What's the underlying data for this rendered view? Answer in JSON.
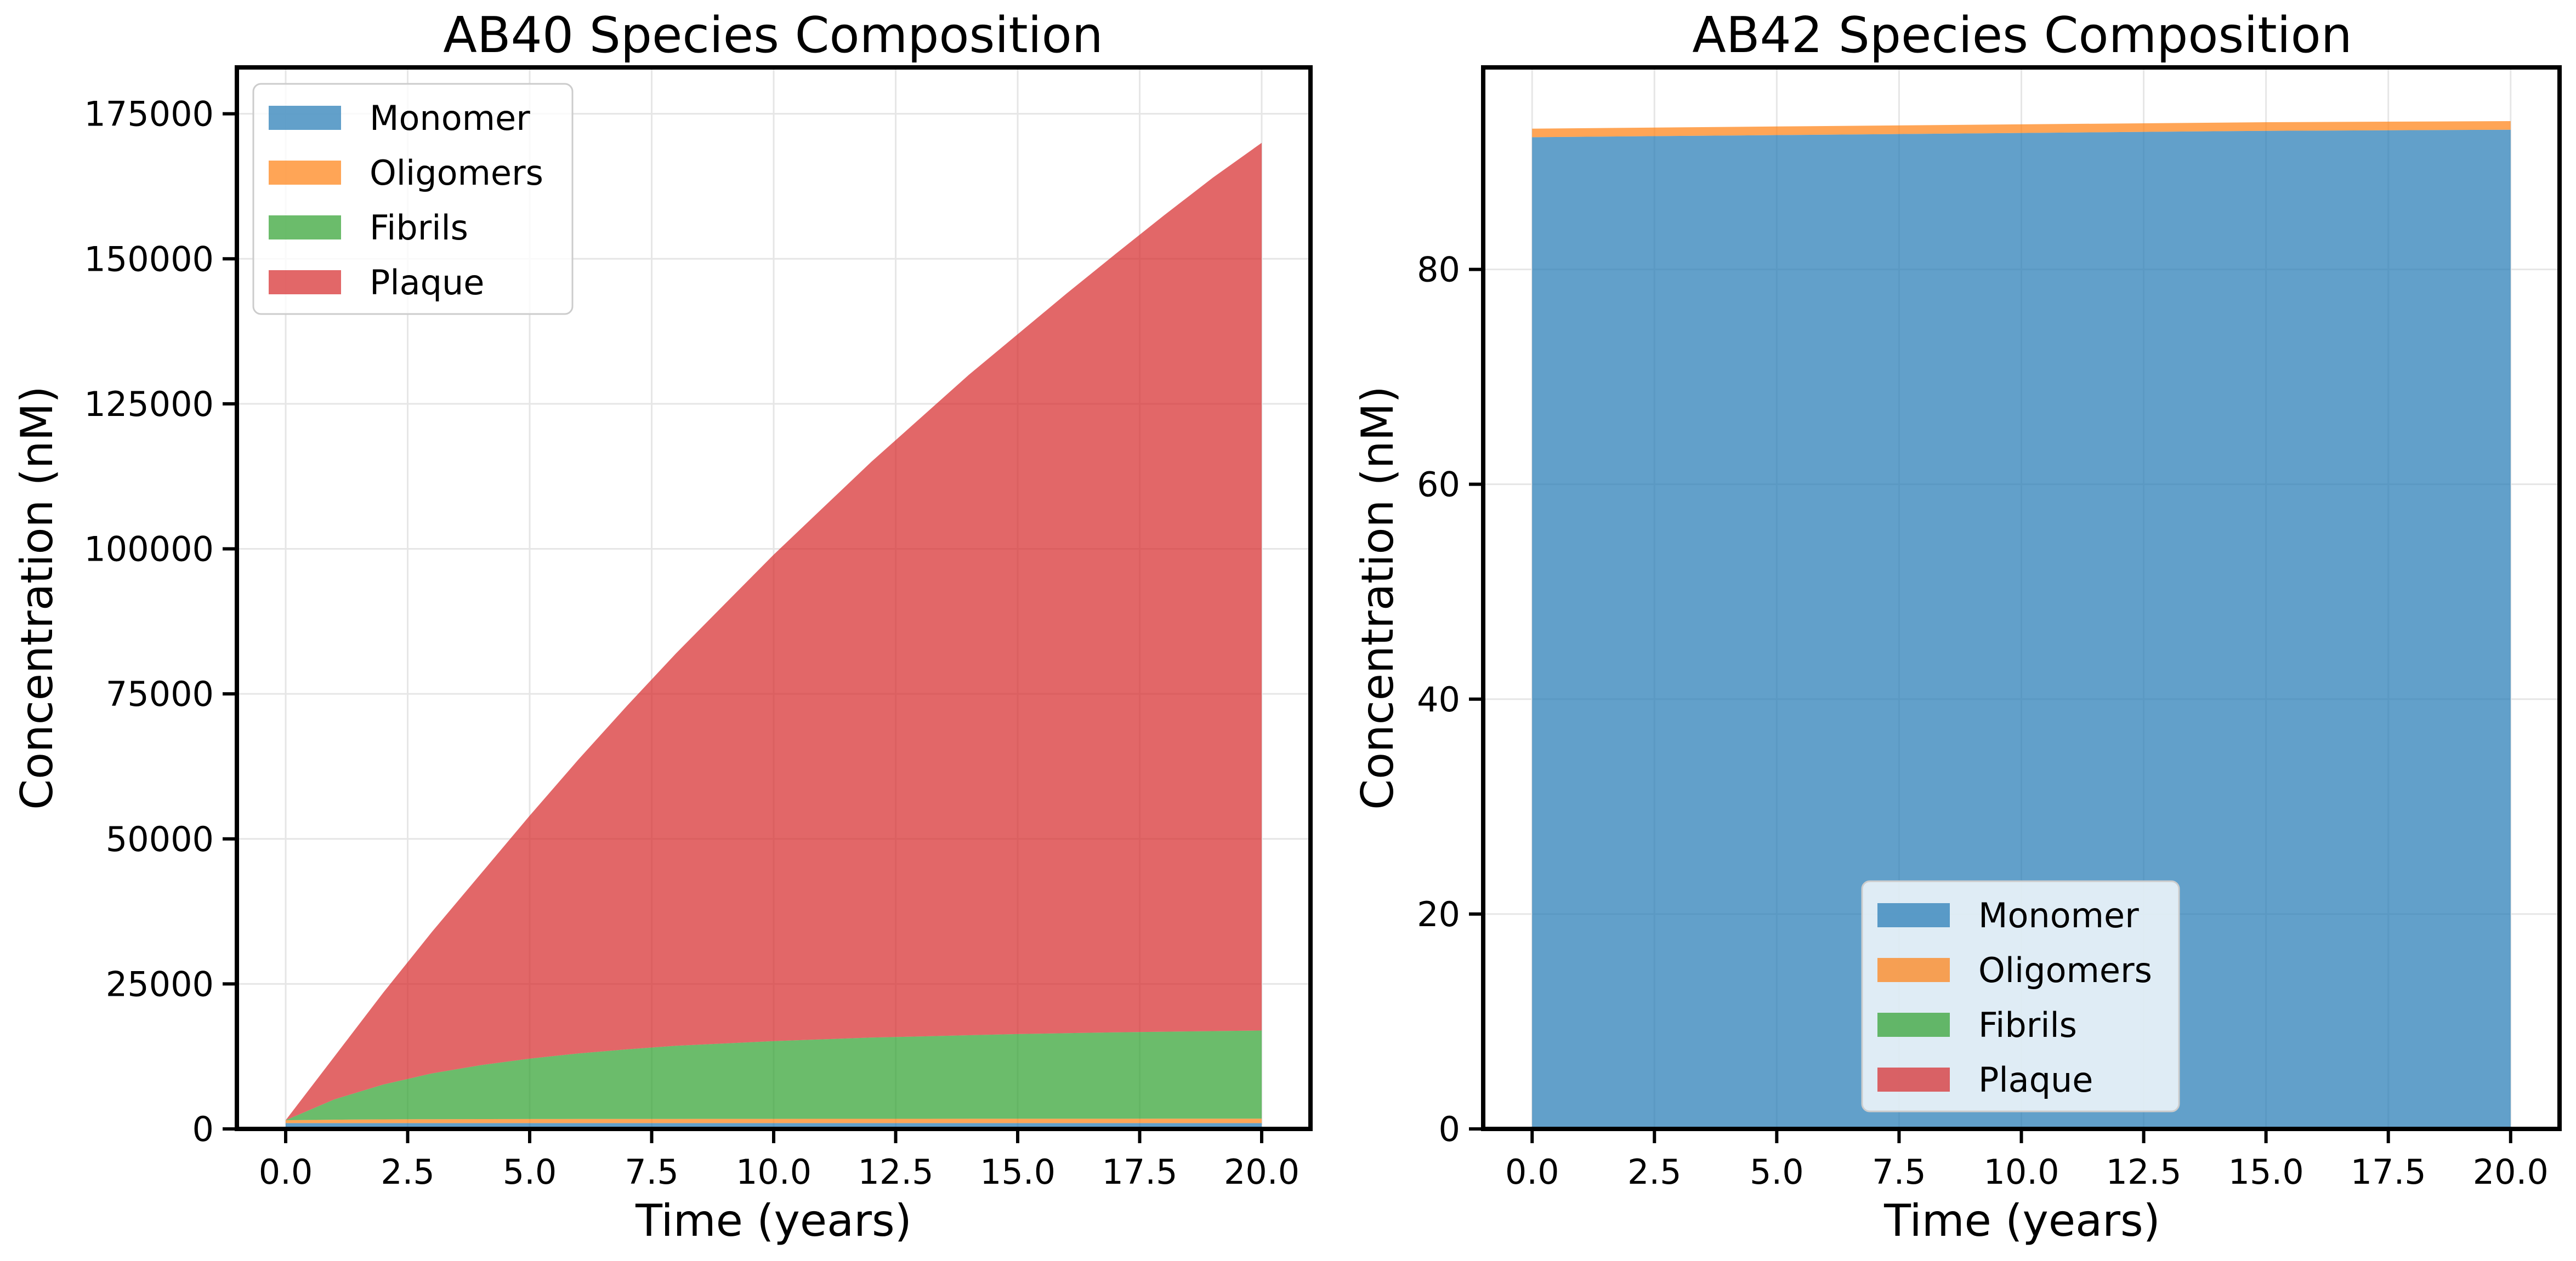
{
  "chart_data": [
    {
      "type": "area",
      "stacked": true,
      "title": "AB40 Species Composition",
      "xlabel": "Time (years)",
      "ylabel": "Concentration (nM)",
      "xlim": [
        -1,
        21
      ],
      "ylim": [
        0,
        183000
      ],
      "xticks": [
        0,
        2.5,
        5,
        7.5,
        10,
        12.5,
        15,
        17.5,
        20
      ],
      "xtick_labels": [
        "0.0",
        "2.5",
        "5.0",
        "7.5",
        "10.0",
        "12.5",
        "15.0",
        "17.5",
        "20.0"
      ],
      "yticks": [
        0,
        25000,
        50000,
        75000,
        100000,
        125000,
        150000,
        175000
      ],
      "ytick_labels": [
        "0",
        "25000",
        "50000",
        "75000",
        "100000",
        "125000",
        "150000",
        "175000"
      ],
      "grid": true,
      "legend_position": "upper-left",
      "x": [
        0,
        1,
        2,
        3,
        4,
        5,
        6,
        7,
        8,
        9,
        10,
        11,
        12,
        13,
        14,
        15,
        16,
        17,
        18,
        19,
        20
      ],
      "series": [
        {
          "name": "Monomer",
          "color": "#1f77b4",
          "values": [
            1000,
            1000,
            1000,
            1000,
            1000,
            1000,
            1000,
            1000,
            1000,
            1000,
            1000,
            1000,
            1000,
            1000,
            1000,
            1000,
            1000,
            1000,
            1000,
            1000,
            1000
          ]
        },
        {
          "name": "Oligomers",
          "color": "#ff7f0e",
          "values": [
            500,
            600,
            650,
            680,
            700,
            710,
            720,
            725,
            730,
            735,
            740,
            745,
            750,
            752,
            754,
            756,
            758,
            760,
            762,
            764,
            766
          ]
        },
        {
          "name": "Fibrils",
          "color": "#2ca02c",
          "values": [
            0,
            3500,
            6000,
            7900,
            9300,
            10400,
            11300,
            12000,
            12600,
            13000,
            13400,
            13700,
            14000,
            14200,
            14400,
            14600,
            14750,
            14900,
            15000,
            15100,
            15200
          ]
        },
        {
          "name": "Plaque",
          "color": "#d62728",
          "values": [
            0,
            7400,
            15850,
            24420,
            33000,
            41890,
            50680,
            59270,
            67670,
            75770,
            83860,
            91560,
            99250,
            106550,
            113850,
            120640,
            127490,
            134140,
            140740,
            147140,
            153030
          ]
        }
      ]
    },
    {
      "type": "area",
      "stacked": true,
      "title": "AB42 Species Composition",
      "xlabel": "Time (years)",
      "ylabel": "Concentration (nM)",
      "xlim": [
        -1,
        21
      ],
      "ylim": [
        0,
        98.8
      ],
      "xticks": [
        0,
        2.5,
        5,
        7.5,
        10,
        12.5,
        15,
        17.5,
        20
      ],
      "xtick_labels": [
        "0.0",
        "2.5",
        "5.0",
        "7.5",
        "10.0",
        "12.5",
        "15.0",
        "17.5",
        "20.0"
      ],
      "yticks": [
        0,
        20,
        40,
        60,
        80
      ],
      "ytick_labels": [
        "0",
        "20",
        "40",
        "60",
        "80"
      ],
      "grid": true,
      "legend_position": "lower-center",
      "x": [
        0,
        5,
        10,
        15,
        20
      ],
      "series": [
        {
          "name": "Monomer",
          "color": "#1f77b4",
          "values": [
            92.3,
            92.5,
            92.7,
            92.9,
            93.0
          ]
        },
        {
          "name": "Oligomers",
          "color": "#ff7f0e",
          "values": [
            0.8,
            0.8,
            0.8,
            0.8,
            0.8
          ]
        },
        {
          "name": "Fibrils",
          "color": "#2ca02c",
          "values": [
            0,
            0,
            0,
            0,
            0
          ]
        },
        {
          "name": "Plaque",
          "color": "#d62728",
          "values": [
            0,
            0,
            0,
            0,
            0
          ]
        }
      ]
    }
  ]
}
